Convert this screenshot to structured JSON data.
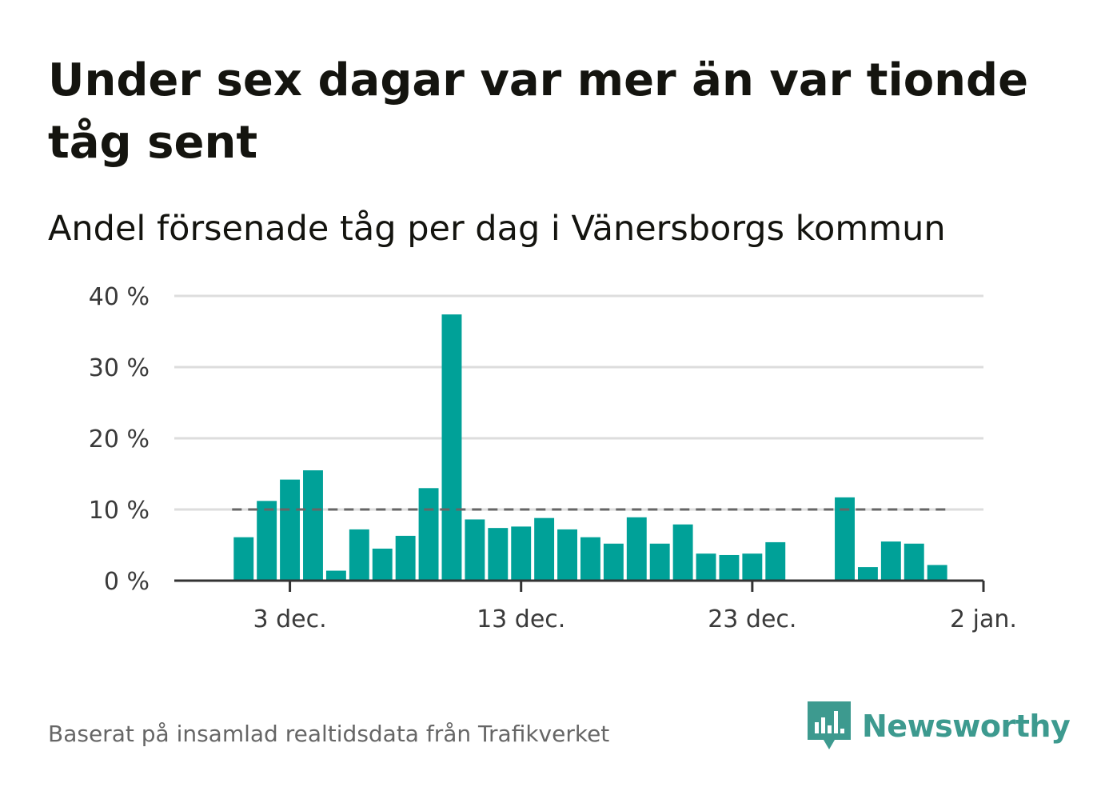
{
  "title": "Under sex dagar var mer än var tionde tåg sent",
  "subtitle": "Andel försenade tåg per dag i Vänersborgs kommun",
  "source": "Baserat på insamlad realtidsdata från Trafikverket",
  "brand": {
    "name": "Newsworthy",
    "icon": "newsworthy-logo-icon",
    "color": "#3d9a8f"
  },
  "colors": {
    "bar": "#00a198",
    "grid": "#dddddd",
    "axis": "#333333",
    "reference_line": "#666666"
  },
  "chart_data": {
    "type": "bar",
    "title": "Under sex dagar var mer än var tionde tåg sent",
    "subtitle": "Andel försenade tåg per dag i Vänersborgs kommun",
    "xlabel": "",
    "ylabel": "",
    "x_ticks": [
      {
        "date": "2019-12-03",
        "label": "3 dec."
      },
      {
        "date": "2019-12-13",
        "label": "13 dec."
      },
      {
        "date": "2019-12-23",
        "label": "23 dec."
      },
      {
        "date": "2020-01-02",
        "label": "2 jan."
      }
    ],
    "y_ticks": [
      {
        "value": 0,
        "label": "0 %"
      },
      {
        "value": 10,
        "label": "10 %"
      },
      {
        "value": 20,
        "label": "20 %"
      },
      {
        "value": 30,
        "label": "30 %"
      },
      {
        "value": 40,
        "label": "40 %"
      }
    ],
    "ylim": [
      0,
      40
    ],
    "xlim": [
      "2019-11-28",
      "2020-01-02"
    ],
    "grid": true,
    "legend": "none",
    "reference_line": {
      "value": 10,
      "style": "dashed"
    },
    "series": [
      {
        "values": [
          {
            "date": "2019-12-01",
            "value": 6.1
          },
          {
            "date": "2019-12-02",
            "value": 11.2
          },
          {
            "date": "2019-12-03",
            "value": 14.2
          },
          {
            "date": "2019-12-04",
            "value": 15.5
          },
          {
            "date": "2019-12-05",
            "value": 1.4
          },
          {
            "date": "2019-12-06",
            "value": 7.2
          },
          {
            "date": "2019-12-07",
            "value": 4.5
          },
          {
            "date": "2019-12-08",
            "value": 6.3
          },
          {
            "date": "2019-12-09",
            "value": 13.0
          },
          {
            "date": "2019-12-10",
            "value": 37.4
          },
          {
            "date": "2019-12-11",
            "value": 8.6
          },
          {
            "date": "2019-12-12",
            "value": 7.4
          },
          {
            "date": "2019-12-13",
            "value": 7.6
          },
          {
            "date": "2019-12-14",
            "value": 8.8
          },
          {
            "date": "2019-12-15",
            "value": 7.2
          },
          {
            "date": "2019-12-16",
            "value": 6.1
          },
          {
            "date": "2019-12-17",
            "value": 5.2
          },
          {
            "date": "2019-12-18",
            "value": 8.9
          },
          {
            "date": "2019-12-19",
            "value": 5.2
          },
          {
            "date": "2019-12-20",
            "value": 7.9
          },
          {
            "date": "2019-12-21",
            "value": 3.8
          },
          {
            "date": "2019-12-22",
            "value": 3.6
          },
          {
            "date": "2019-12-23",
            "value": 3.8
          },
          {
            "date": "2019-12-24",
            "value": 5.4
          },
          {
            "date": "2019-12-27",
            "value": 11.7
          },
          {
            "date": "2019-12-28",
            "value": 1.9
          },
          {
            "date": "2019-12-29",
            "value": 5.5
          },
          {
            "date": "2019-12-30",
            "value": 5.2
          },
          {
            "date": "2019-12-31",
            "value": 2.2
          }
        ]
      }
    ]
  }
}
